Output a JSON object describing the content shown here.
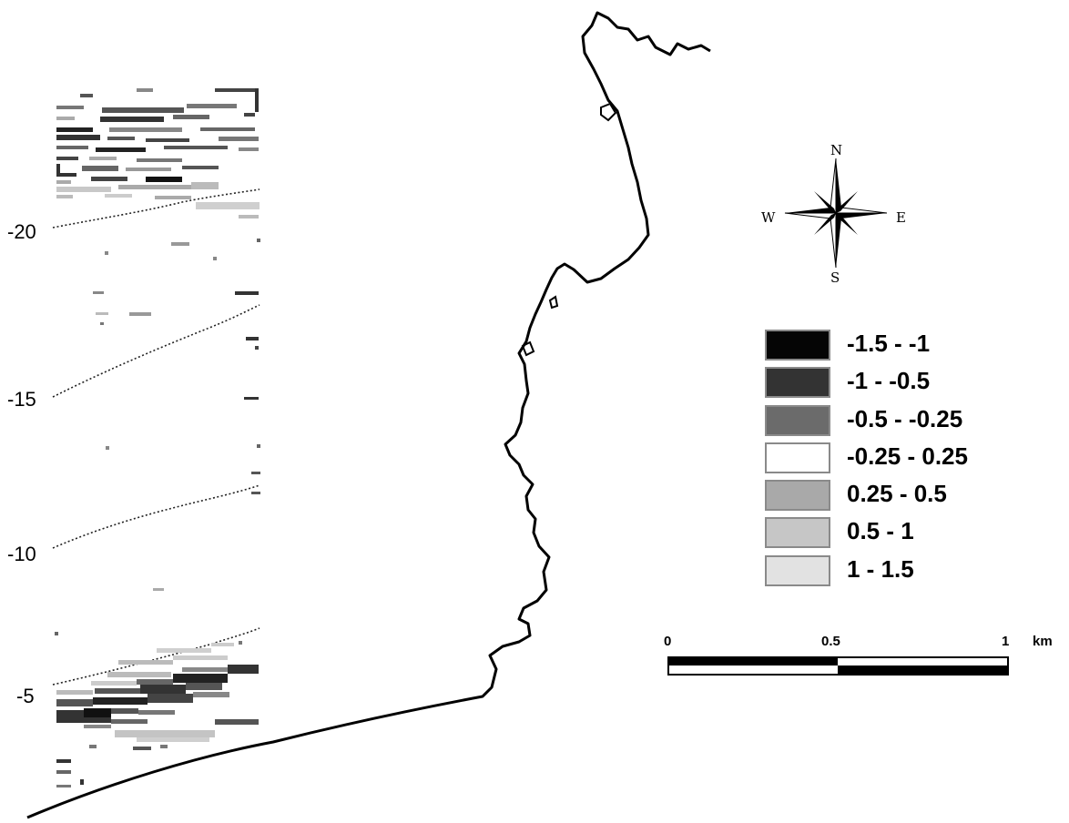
{
  "depth_labels": {
    "d20": "-20",
    "d15": "-15",
    "d10": "-10",
    "d5": "-5"
  },
  "compass": {
    "n": "N",
    "s": "S",
    "e": "E",
    "w": "W"
  },
  "legend": {
    "items": [
      {
        "label": "-1.5 - -1",
        "color": "#050505"
      },
      {
        "label": "-1 - -0.5",
        "color": "#333333"
      },
      {
        "label": "-0.5 - -0.25",
        "color": "#6b6b6b"
      },
      {
        "label": "-0.25 - 0.25",
        "color": "#ffffff"
      },
      {
        "label": "0.25 - 0.5",
        "color": "#a9a9a9"
      },
      {
        "label": "0.5 - 1",
        "color": "#c6c6c6"
      },
      {
        "label": "1 - 1.5",
        "color": "#e2e2e2"
      }
    ]
  },
  "scale_bar": {
    "tick_0": "0",
    "tick_mid": "0.5",
    "tick_end": "1",
    "unit": "km"
  }
}
